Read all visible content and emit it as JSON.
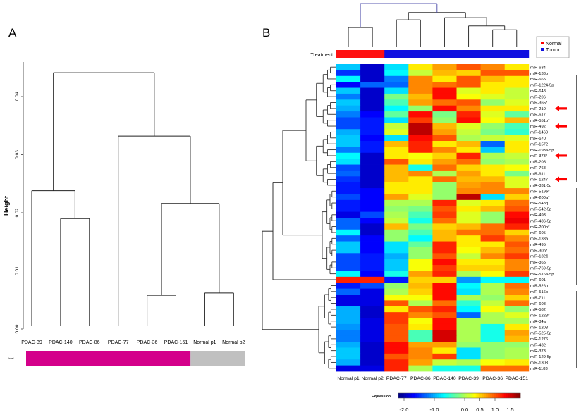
{
  "panels": {
    "a_label": "A",
    "b_label": "B"
  },
  "chart_data": [
    {
      "type": "dendrogram",
      "panel": "A",
      "ylabel": "Height",
      "ylim": [
        0,
        0.045
      ],
      "yticks": [
        "0.00",
        "0.01",
        "0.02",
        "0.03",
        "0.04"
      ],
      "yticks_values": [
        0,
        0.01,
        0.02,
        0.03,
        0.04
      ],
      "leaves": [
        "PDAC-39",
        "PDAC-140",
        "PDAC-86",
        "PDAC-77",
        "PDAC-36",
        "PDAC-151",
        "Normal p1",
        "Normal p2"
      ],
      "merges": [
        [
          -2,
          -3,
          0.019
        ],
        [
          -1,
          1,
          0.0238
        ],
        [
          -5,
          -6,
          0.0058
        ],
        [
          -7,
          -8,
          0.0062
        ],
        [
          3,
          4,
          0.0216
        ],
        [
          -4,
          5,
          0.0332
        ],
        [
          2,
          6,
          0.0441
        ]
      ],
      "annotation_bar": {
        "label": "label",
        "groups": [
          {
            "count": 6,
            "color": "#d4008a"
          },
          {
            "count": 2,
            "color": "#c0c0c0"
          }
        ]
      }
    },
    {
      "type": "heatmap",
      "panel": "B",
      "columns": [
        "Normal p1",
        "Normal p2",
        "PDAC-77",
        "PDAC-86",
        "PDAC-140",
        "PDAC-39",
        "PDAC-36",
        "PDAC-151"
      ],
      "column_dendrogram_merges": [
        [
          -1,
          -2,
          0.44
        ],
        [
          -3,
          -4,
          0.62
        ],
        [
          -7,
          -8,
          0.39
        ],
        [
          -6,
          3,
          0.48
        ],
        [
          -5,
          4,
          0.67
        ],
        [
          2,
          5,
          0.79
        ],
        [
          1,
          6,
          1.0
        ]
      ],
      "treatment": {
        "label": "Treatment",
        "values": [
          "Normal",
          "Normal",
          "Tumor",
          "Tumor",
          "Tumor",
          "Tumor",
          "Tumor",
          "Tumor"
        ]
      },
      "legend": {
        "position": "top-right",
        "items": [
          {
            "name": "Normal",
            "color": "#ff0000"
          },
          {
            "name": "Tumor",
            "color": "#1010e0"
          }
        ]
      },
      "rows": [
        "miR-634",
        "miR-133b",
        "miR-665",
        "miR-1224-5p",
        "miR-648",
        "miR-206",
        "miR-365*",
        "miR-210",
        "miR-617",
        "miR-551b*",
        "miR-492",
        "miR-1469",
        "miR-670",
        "miR-1572",
        "miR-193a-5p",
        "miR-373*",
        "miR-205",
        "miR-768",
        "miR-611",
        "miR-1247",
        "miR-331-5p",
        "miR-519e*",
        "miR-200a*",
        "miR-548q",
        "miR-542-5p",
        "miR-493",
        "miR-486-5p",
        "miR-200b*",
        "miR-605",
        "miR-133a",
        "miR-495",
        "miR-30b*",
        "miR-132¶",
        "miR-365",
        "miR-769-5p",
        "miR-516a-5p",
        "miR-601",
        "miR-526b",
        "miR-516b",
        "miR-711",
        "miR-608",
        "miR-582",
        "miR-1228*",
        "miR-34a",
        "miR-1208",
        "miR-525-5p",
        "miR-1276",
        "miR-432",
        "miR-373",
        "miR-129-5p",
        "miR-1303",
        "miR-1183"
      ],
      "row_clusters": [
        [
          0,
          20
        ],
        [
          21,
          35
        ],
        [
          36,
          36
        ],
        [
          37,
          51
        ]
      ],
      "highlighted_rows": [
        "miR-210",
        "miR-492",
        "miR-373*",
        "miR-1247"
      ],
      "arrow_color": "#ff0000",
      "values": [
        [
          -0.9,
          -1.9,
          -0.8,
          0.4,
          0.7,
          1.0,
          0.8,
          0.4
        ],
        [
          -1.5,
          -1.9,
          -0.7,
          0.1,
          0.6,
          0.5,
          1.0,
          1.0
        ],
        [
          -0.7,
          -1.9,
          -1.2,
          0.8,
          0.4,
          1.0,
          0.6,
          0.4
        ],
        [
          -1.7,
          -1.3,
          -1.3,
          0.8,
          0.9,
          1.0,
          0.4,
          0.4
        ],
        [
          -0.9,
          -1.9,
          -0.8,
          0.8,
          1.3,
          0.2,
          0.4,
          0.1
        ],
        [
          -1.2,
          -1.9,
          -0.2,
          0.6,
          1.3,
          0.3,
          0.2,
          0.1
        ],
        [
          -0.9,
          -1.9,
          -0.4,
          0.7,
          0.9,
          1.0,
          -0.1,
          0.2
        ],
        [
          -1.0,
          -1.9,
          -0.7,
          -0.1,
          1.3,
          0.8,
          0.4,
          0.4
        ],
        [
          -1.2,
          -1.7,
          -0.3,
          1.3,
          -0.2,
          1.2,
          0.2,
          -0.3
        ],
        [
          -1.4,
          -1.6,
          -0.8,
          1.1,
          -0.1,
          1.3,
          0.3,
          0.6
        ],
        [
          -1.4,
          -1.6,
          0.1,
          1.6,
          0.6,
          0.2,
          -0.1,
          -0.4
        ],
        [
          -1.0,
          -1.6,
          0.2,
          1.6,
          0.7,
          0.1,
          -0.2,
          -0.5
        ],
        [
          -0.9,
          -1.7,
          -0.8,
          1.3,
          1.0,
          0.0,
          0.1,
          0.2
        ],
        [
          -0.9,
          -1.6,
          0.6,
          1.2,
          0.4,
          0.6,
          -1.3,
          0.4
        ],
        [
          -1.2,
          -1.6,
          0.4,
          1.2,
          0.8,
          0.4,
          -0.9,
          0.4
        ],
        [
          -0.7,
          -1.9,
          0.4,
          0.3,
          0.5,
          1.2,
          0.0,
          0.1
        ],
        [
          -0.8,
          -1.9,
          1.0,
          0.4,
          0.7,
          0.9,
          -0.1,
          0.0
        ],
        [
          -1.4,
          -1.9,
          0.6,
          -0.6,
          0.9,
          0.5,
          0.4,
          0.3
        ],
        [
          -1.3,
          -1.9,
          0.6,
          0.8,
          0.0,
          0.7,
          0.4,
          -0.2
        ],
        [
          -1.5,
          -1.9,
          0.6,
          0.4,
          0.9,
          0.6,
          0.6,
          0.2
        ],
        [
          -1.6,
          -1.9,
          0.4,
          0.4,
          -0.1,
          0.7,
          0.8,
          0.2
        ],
        [
          -1.6,
          -1.7,
          0.4,
          0.4,
          -0.1,
          0.8,
          0.8,
          0.8
        ],
        [
          -1.4,
          -1.7,
          0.7,
          0.2,
          -0.1,
          1.6,
          -0.8,
          0.5
        ],
        [
          -1.6,
          -1.7,
          0.0,
          0.0,
          1.2,
          0.2,
          0.4,
          0.9
        ],
        [
          -1.6,
          -1.7,
          -0.1,
          -0.2,
          1.0,
          0.4,
          0.6,
          1.0
        ],
        [
          -1.8,
          -1.4,
          0.0,
          -0.4,
          1.1,
          0.2,
          -0.1,
          1.3
        ],
        [
          -1.3,
          -1.7,
          0.1,
          -0.6,
          0.9,
          0.2,
          -0.1,
          1.4
        ],
        [
          -1.3,
          -1.9,
          0.6,
          -0.2,
          0.5,
          0.6,
          0.9,
          1.2
        ],
        [
          -0.7,
          -1.9,
          -0.1,
          -0.4,
          0.6,
          0.9,
          0.9,
          0.5
        ],
        [
          -1.3,
          -1.7,
          -0.1,
          -0.7,
          0.6,
          0.4,
          1.1,
          0.8
        ],
        [
          -0.9,
          -1.7,
          -0.8,
          -0.3,
          1.2,
          0.4,
          0.4,
          1.0
        ],
        [
          -0.9,
          -1.7,
          -0.8,
          -0.1,
          1.2,
          0.3,
          0.6,
          0.9
        ],
        [
          -1.4,
          -1.6,
          -1.0,
          -0.1,
          1.0,
          0.1,
          0.8,
          1.1
        ],
        [
          -1.4,
          -1.6,
          -0.9,
          0.3,
          1.3,
          0.4,
          0.4,
          0.8
        ],
        [
          -1.4,
          -1.6,
          -0.9,
          0.3,
          1.1,
          0.5,
          0.5,
          0.8
        ],
        [
          -0.7,
          -1.7,
          -0.6,
          0.7,
          1.2,
          0.0,
          0.3,
          1.1
        ],
        [
          1.2,
          1.2,
          -1.6,
          0.5,
          0.5,
          -1.1,
          -0.7,
          -0.7
        ],
        [
          -1.6,
          -1.4,
          -0.1,
          0.6,
          1.3,
          -0.7,
          0.0,
          0.9
        ],
        [
          -1.3,
          -1.8,
          0.0,
          0.5,
          1.3,
          -0.8,
          0.0,
          0.8
        ],
        [
          -1.8,
          -1.8,
          0.3,
          0.3,
          1.3,
          0.0,
          -0.1,
          0.5
        ],
        [
          -1.8,
          -1.8,
          1.0,
          0.0,
          0.9,
          -0.5,
          0.1,
          0.9
        ],
        [
          -1.0,
          -1.9,
          0.4,
          1.0,
          1.2,
          -0.7,
          0.3,
          -0.1
        ],
        [
          -1.0,
          -1.9,
          1.1,
          0.8,
          1.0,
          -1.3,
          0.0,
          0.2
        ],
        [
          -1.0,
          -1.8,
          1.1,
          0.3,
          1.3,
          0.0,
          0.0,
          0.0
        ],
        [
          -1.1,
          -1.8,
          1.0,
          0.4,
          1.3,
          0.0,
          -0.6,
          0.4
        ],
        [
          -1.2,
          -1.8,
          1.0,
          -0.4,
          1.5,
          0.0,
          -0.6,
          0.7
        ],
        [
          -1.2,
          -1.8,
          1.0,
          -0.4,
          1.5,
          0.0,
          -0.6,
          0.6
        ],
        [
          -1.0,
          -1.9,
          1.3,
          0.7,
          0.7,
          -0.1,
          -0.1,
          -0.1
        ],
        [
          -0.9,
          -1.9,
          1.3,
          0.8,
          0.4,
          -0.8,
          -0.1,
          0.0
        ],
        [
          -0.9,
          -1.9,
          1.0,
          0.8,
          1.1,
          -0.8,
          -0.1,
          0.0
        ],
        [
          -1.0,
          -1.9,
          1.2,
          0.7,
          0.1,
          0.0,
          0.3,
          0.4
        ],
        [
          -1.8,
          -1.8,
          1.2,
          0.0,
          -0.6,
          -0.6,
          0.9,
          0.9
        ]
      ],
      "colorbar": {
        "label": "Expression",
        "colormap": "jet",
        "range": [
          -2.2,
          1.84
        ],
        "ticks": [
          "-2.0",
          "-1.0",
          "0.0",
          "0.5",
          "1.0",
          "1.5"
        ],
        "tick_values": [
          -2.0,
          -1.0,
          0.0,
          0.5,
          1.0,
          1.5
        ]
      }
    }
  ]
}
